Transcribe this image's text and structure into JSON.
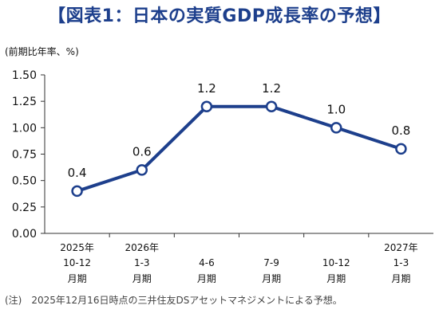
{
  "title": "【図表1：日本の実質GDP成長率の予想】",
  "chart_data": {
    "type": "line",
    "unit_label": "(前期比年率、%)",
    "ylim": [
      0,
      1.5
    ],
    "y_ticks": [
      "0.00",
      "0.25",
      "0.50",
      "0.75",
      "1.00",
      "1.25",
      "1.50"
    ],
    "categories": [
      {
        "year": "2025年",
        "range": "10-12",
        "suffix": "月期"
      },
      {
        "year": "2026年",
        "range": "1-3",
        "suffix": "月期"
      },
      {
        "year": "",
        "range": "4-6",
        "suffix": "月期"
      },
      {
        "year": "",
        "range": "7-9",
        "suffix": "月期"
      },
      {
        "year": "",
        "range": "10-12",
        "suffix": "月期"
      },
      {
        "year": "2027年",
        "range": "1-3",
        "suffix": "月期"
      }
    ],
    "values": [
      0.4,
      0.6,
      1.2,
      1.2,
      1.0,
      0.8
    ],
    "data_labels": [
      "0.4",
      "0.6",
      "1.2",
      "1.2",
      "1.0",
      "0.8"
    ],
    "line_color": "#1d3f8c",
    "grid": false,
    "legend": "none"
  },
  "note": {
    "mark": "(注)",
    "text": "2025年12月16日時点の三井住友DSアセットマネジメントによる予想。"
  }
}
